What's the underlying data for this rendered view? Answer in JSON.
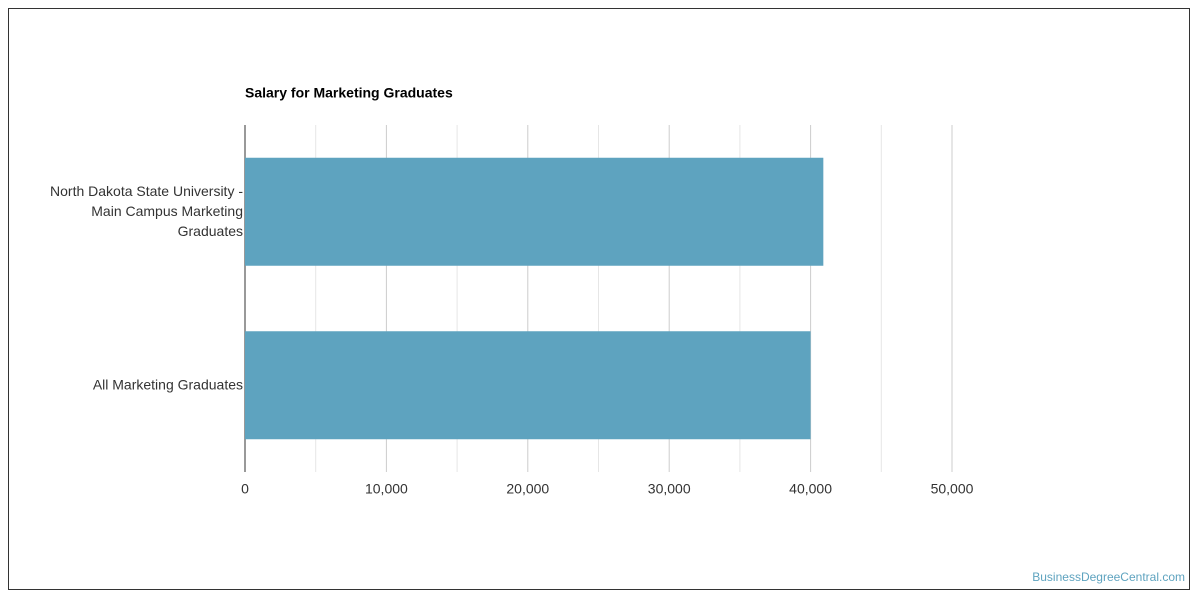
{
  "chart_data": {
    "type": "bar",
    "orientation": "horizontal",
    "title": "Salary for Marketing Graduates",
    "categories": [
      "North Dakota State University - Main Campus Marketing Graduates",
      "All Marketing Graduates"
    ],
    "values": [
      40900,
      40000
    ],
    "color": "#5ea3bf",
    "xlim": [
      0,
      50000
    ],
    "xticks": [
      0,
      {
        "value": 10000,
        "label": "10,000"
      },
      {
        "value": 20000,
        "label": "20,000"
      },
      {
        "value": 30000,
        "label": "30,000"
      },
      {
        "value": 40000,
        "label": "40,000"
      },
      {
        "value": 50000,
        "label": "50,000"
      }
    ],
    "minor_xticks": [
      5000,
      15000,
      25000,
      35000,
      45000
    ],
    "grid": true
  },
  "watermark": "BusinessDegreeCentral.com"
}
